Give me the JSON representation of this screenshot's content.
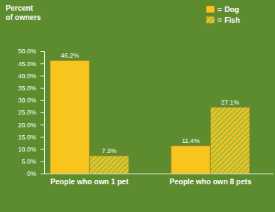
{
  "chart_data": {
    "type": "bar",
    "y_label": "Percent\nof owners",
    "categories": [
      "People who own 1 pet",
      "People who own 8 pets"
    ],
    "series": [
      {
        "name": "Dog",
        "color": "#f7c51e",
        "values": [
          46.2,
          11.4
        ],
        "value_labels": [
          "46.2%",
          "11.4%"
        ]
      },
      {
        "name": "Fish",
        "color": "#f7c51e",
        "values": [
          7.3,
          27.1
        ],
        "value_labels": [
          "7.3%",
          "27.1%"
        ]
      }
    ],
    "ylim": [
      0,
      50
    ],
    "yticks": [
      {
        "value": 0,
        "label": "0%"
      },
      {
        "value": 5,
        "label": "5.0%"
      },
      {
        "value": 10,
        "label": "10.0%"
      },
      {
        "value": 15,
        "label": "15.0%"
      },
      {
        "value": 20,
        "label": "20.0%"
      },
      {
        "value": 25,
        "label": "25.0%"
      },
      {
        "value": 30,
        "label": "30.0%"
      },
      {
        "value": 35,
        "label": "35.0%"
      },
      {
        "value": 40,
        "label": "40.0%"
      },
      {
        "value": 45,
        "label": "45.0%"
      },
      {
        "value": 50,
        "label": "50.0%"
      }
    ],
    "grid": false,
    "legend": "top-right",
    "data_labels": true
  }
}
